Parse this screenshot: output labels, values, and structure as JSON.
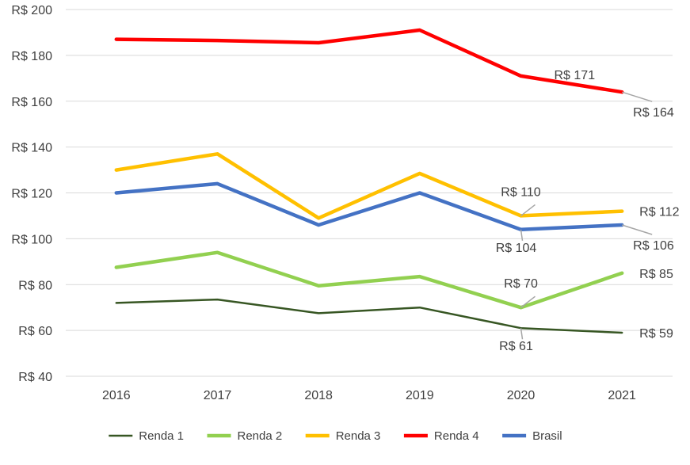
{
  "chart_data": {
    "type": "line",
    "title": "",
    "xlabel": "",
    "ylabel": "",
    "categories": [
      "2016",
      "2017",
      "2018",
      "2019",
      "2020",
      "2021"
    ],
    "ylim": [
      40,
      200
    ],
    "ytick_step": 20,
    "y_tick_prefix": "R$ ",
    "grid": "horizontal",
    "legend_position": "bottom",
    "series": [
      {
        "name": "Renda 1",
        "color": "#375623",
        "stroke": "thin",
        "values": [
          72,
          73.5,
          67.5,
          70,
          61,
          59
        ]
      },
      {
        "name": "Renda 2",
        "color": "#92D050",
        "stroke": "thick",
        "values": [
          87.5,
          94,
          79.5,
          83.5,
          70,
          85
        ]
      },
      {
        "name": "Renda 3",
        "color": "#FFC000",
        "stroke": "thick",
        "values": [
          130,
          137,
          109,
          128.5,
          110,
          112
        ]
      },
      {
        "name": "Renda 4",
        "color": "#FF0000",
        "stroke": "thick",
        "values": [
          187,
          186.5,
          185.5,
          191,
          171,
          164
        ]
      },
      {
        "name": "Brasil",
        "color": "#4472C4",
        "stroke": "thick",
        "values": [
          120,
          124,
          106,
          120,
          104,
          106
        ]
      }
    ],
    "annotations": [
      {
        "series": "Renda 4",
        "category": "2020",
        "text": "R$ 171",
        "placement": "right"
      },
      {
        "series": "Renda 4",
        "category": "2021",
        "text": "R$ 164",
        "placement": "below-right"
      },
      {
        "series": "Renda 3",
        "category": "2020",
        "text": "R$ 110",
        "placement": "above"
      },
      {
        "series": "Renda 3",
        "category": "2021",
        "text": "R$ 112",
        "placement": "right"
      },
      {
        "series": "Brasil",
        "category": "2020",
        "text": "R$ 104",
        "placement": "below"
      },
      {
        "series": "Brasil",
        "category": "2021",
        "text": "R$ 106",
        "placement": "below-right"
      },
      {
        "series": "Renda 2",
        "category": "2020",
        "text": "R$ 70",
        "placement": "above"
      },
      {
        "series": "Renda 2",
        "category": "2021",
        "text": "R$ 85",
        "placement": "right"
      },
      {
        "series": "Renda 1",
        "category": "2020",
        "text": "R$ 61",
        "placement": "below"
      },
      {
        "series": "Renda 1",
        "category": "2021",
        "text": "R$ 59",
        "placement": "right"
      }
    ],
    "colors": {
      "grid": "#D9D9D9",
      "text": "#404040",
      "leader": "#A6A6A6"
    }
  }
}
